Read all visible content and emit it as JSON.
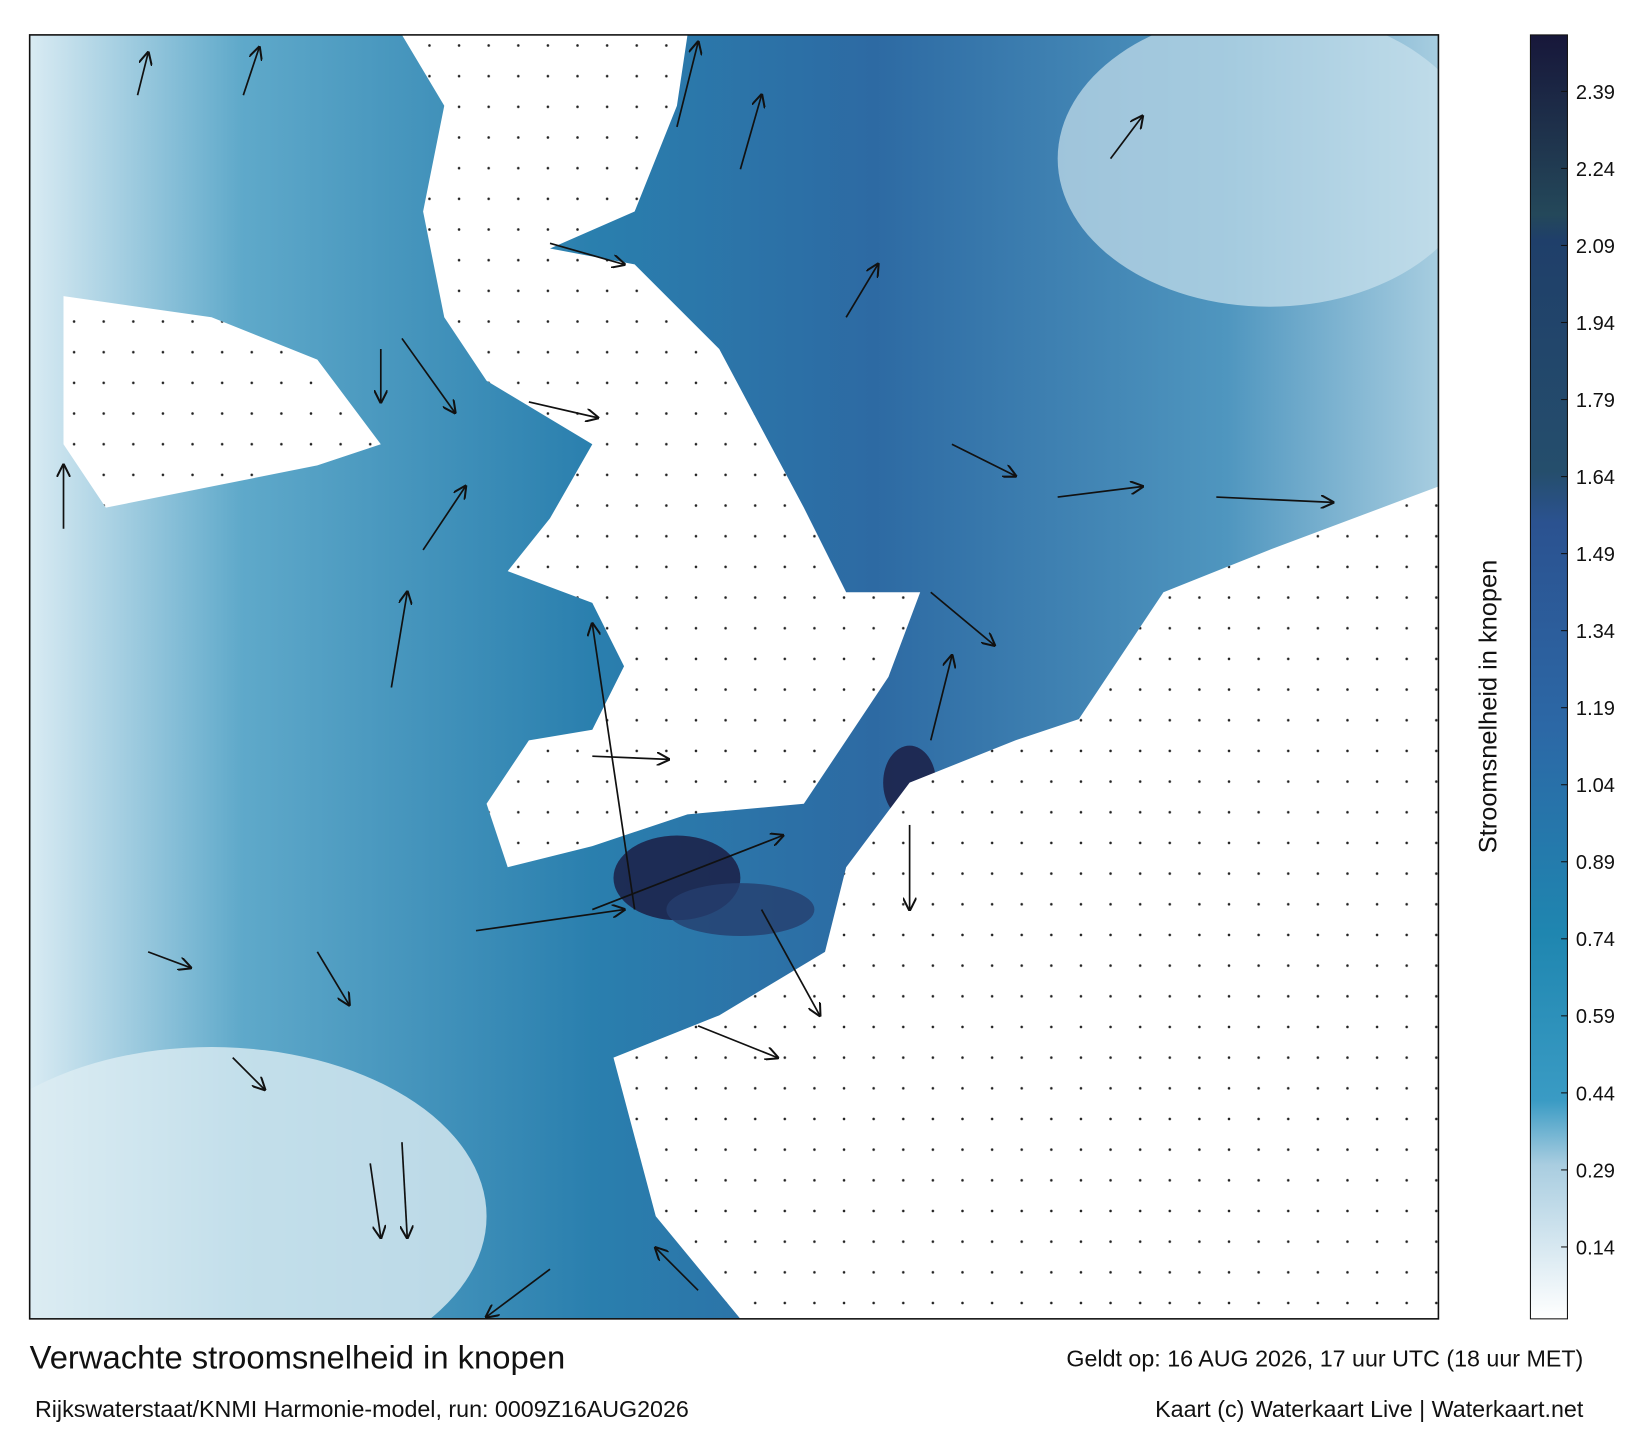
{
  "title": "Verwachte stroomsnelheid in knopen",
  "valid_time": "Geldt op: 16 AUG 2026, 17 uur UTC (18 uur MET)",
  "model": "Rijkswaterstaat/KNMI Harmonie-model, run: 0009Z16AUG2026",
  "credit": "Kaart (c) Waterkaart Live | Waterkaart.net",
  "colorbar": {
    "label": "Stroomsnelheid in knopen",
    "lim": [
      0,
      2.5
    ],
    "ticks": [
      0.14,
      0.29,
      0.44,
      0.59,
      0.74,
      0.89,
      1.04,
      1.19,
      1.34,
      1.49,
      1.64,
      1.79,
      1.94,
      2.09,
      2.24,
      2.39
    ]
  }
}
